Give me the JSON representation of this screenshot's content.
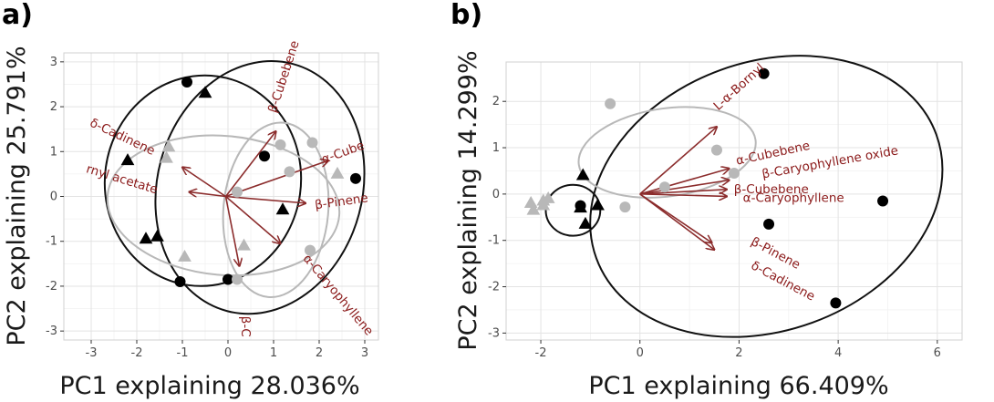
{
  "colors": {
    "black_group": "#000000",
    "grey_group": "#b8b8b8",
    "arrow": "#8b2c2c",
    "label": "#8b1a1a",
    "grid_major": "#e3e3e3",
    "grid_minor": "#f2f2f2",
    "panel_border": "#d0d0d0"
  },
  "chart_data": [
    {
      "panel": "a)",
      "type": "scatter",
      "xlabel": "PC1 explaining 28.036%",
      "ylabel": "PC2 explaining 25.791%",
      "xlim": [
        -3.6,
        3.3
      ],
      "ylim": [
        -3.2,
        3.2
      ],
      "xticks": [
        -3,
        -2,
        -1,
        0,
        1,
        2,
        3
      ],
      "yticks": [
        -3,
        -2,
        -1,
        0,
        1,
        2,
        3
      ],
      "grid": true,
      "series": [
        {
          "group": "black-circle",
          "points": [
            [
              -0.9,
              2.55
            ],
            [
              0.8,
              0.9
            ],
            [
              2.8,
              0.4
            ],
            [
              -1.05,
              -1.9
            ],
            [
              0.0,
              -1.85
            ]
          ]
        },
        {
          "group": "black-triangle",
          "points": [
            [
              -0.5,
              2.3
            ],
            [
              -2.2,
              0.8
            ],
            [
              -1.8,
              -0.95
            ],
            [
              -1.55,
              -0.9
            ],
            [
              1.2,
              -0.3
            ]
          ]
        },
        {
          "group": "grey-circle",
          "points": [
            [
              1.15,
              1.15
            ],
            [
              1.35,
              0.55
            ],
            [
              0.2,
              0.1
            ],
            [
              1.85,
              1.2
            ],
            [
              1.8,
              -1.2
            ],
            [
              0.2,
              -1.85
            ]
          ]
        },
        {
          "group": "grey-triangle",
          "points": [
            [
              -1.3,
              1.1
            ],
            [
              -1.35,
              0.85
            ],
            [
              2.4,
              0.5
            ],
            [
              0.35,
              -1.1
            ],
            [
              -0.95,
              -1.35
            ]
          ]
        }
      ],
      "ellipses": [
        {
          "color": "black",
          "cx": -0.55,
          "cy": 0.35,
          "rx": 2.15,
          "ry": 2.35,
          "rot": 8
        },
        {
          "color": "black",
          "cx": 0.7,
          "cy": 0.2,
          "rx": 2.25,
          "ry": 2.85,
          "rot": 15
        },
        {
          "color": "grey",
          "cx": -0.1,
          "cy": -0.2,
          "rx": 2.55,
          "ry": 1.55,
          "rot": 5
        },
        {
          "color": "grey",
          "cx": 1.05,
          "cy": -0.3,
          "rx": 1.15,
          "ry": 1.95,
          "rot": 5
        }
      ],
      "loadings": [
        {
          "label": "β-Cubebene",
          "x": 1.05,
          "y": 1.45,
          "lx": 1.05,
          "ly": 1.85,
          "angle": -72,
          "anchor": "start"
        },
        {
          "label": "δ-Cadinene",
          "x": -1.0,
          "y": 0.65,
          "lx": -2.35,
          "ly": 1.25,
          "angle": 25,
          "anchor": "middle"
        },
        {
          "label": "rnyl acetate",
          "x": -0.85,
          "y": 0.1,
          "lx": -2.35,
          "ly": 0.3,
          "angle": 17,
          "anchor": "middle"
        },
        {
          "label": "α-Cube",
          "x": 2.2,
          "y": 0.8,
          "lx": 2.55,
          "ly": 0.9,
          "angle": -20,
          "anchor": "middle"
        },
        {
          "label": "β-Pinene",
          "x": 1.7,
          "y": -0.15,
          "lx": 2.5,
          "ly": -0.2,
          "angle": -8,
          "anchor": "middle"
        },
        {
          "label": "α-Caryophyllene",
          "x": 1.15,
          "y": -1.05,
          "lx": 2.35,
          "ly": -2.25,
          "angle": 50,
          "anchor": "middle"
        },
        {
          "label": "β-C",
          "x": 0.25,
          "y": -1.55,
          "lx": 0.3,
          "ly": -2.9,
          "angle": 90,
          "anchor": "middle"
        }
      ],
      "arrow_origin": [
        -0.05,
        0.0
      ]
    },
    {
      "panel": "b)",
      "type": "scatter",
      "xlabel": "PC1 explaining 66.409%",
      "ylabel": "PC2 explaining 14.299%",
      "xlim": [
        -2.7,
        6.5
      ],
      "ylim": [
        -3.15,
        2.85
      ],
      "xticks": [
        -2,
        0,
        2,
        4,
        6
      ],
      "yticks": [
        -3,
        -2,
        -1,
        0,
        1,
        2
      ],
      "grid": true,
      "series": [
        {
          "group": "black-circle",
          "points": [
            [
              2.5,
              2.6
            ],
            [
              4.9,
              -0.15
            ],
            [
              2.6,
              -0.65
            ],
            [
              3.95,
              -2.35
            ],
            [
              -1.2,
              -0.25
            ]
          ]
        },
        {
          "group": "black-triangle",
          "points": [
            [
              -1.15,
              0.4
            ],
            [
              -1.2,
              -0.3
            ],
            [
              -0.85,
              -0.25
            ],
            [
              -1.1,
              -0.65
            ]
          ]
        },
        {
          "group": "grey-circle",
          "points": [
            [
              -0.6,
              1.95
            ],
            [
              1.55,
              0.95
            ],
            [
              1.9,
              0.45
            ],
            [
              0.5,
              0.15
            ],
            [
              -0.3,
              -0.28
            ]
          ]
        },
        {
          "group": "grey-triangle",
          "points": [
            [
              -2.2,
              -0.2
            ],
            [
              -1.95,
              -0.15
            ],
            [
              -1.95,
              -0.25
            ],
            [
              -2.15,
              -0.35
            ],
            [
              -1.85,
              -0.1
            ]
          ]
        }
      ],
      "ellipses": [
        {
          "color": "black",
          "cx": 2.55,
          "cy": -0.05,
          "rx": 3.65,
          "ry": 2.9,
          "rot": -20
        },
        {
          "color": "black",
          "cx": -1.35,
          "cy": -0.35,
          "rx": 0.55,
          "ry": 0.55,
          "rot": 0
        },
        {
          "color": "grey",
          "cx": 0.55,
          "cy": 0.9,
          "rx": 1.8,
          "ry": 0.95,
          "rot": -8
        }
      ],
      "loadings": [
        {
          "label": "L-α-Bornyl",
          "x": 1.55,
          "y": 1.45,
          "lx": 2.05,
          "ly": 2.25,
          "angle": -42,
          "anchor": "middle"
        },
        {
          "label": "α-Cubebene",
          "x": 1.8,
          "y": 0.55,
          "lx": 2.7,
          "ly": 0.8,
          "angle": -12,
          "anchor": "middle"
        },
        {
          "label": "β-Caryophyllene oxide",
          "x": 1.8,
          "y": 0.3,
          "lx": 3.85,
          "ly": 0.6,
          "angle": -10,
          "anchor": "middle"
        },
        {
          "label": "β-Cubebene",
          "x": 1.75,
          "y": 0.1,
          "lx": 2.65,
          "ly": 0.02,
          "angle": 0,
          "anchor": "middle"
        },
        {
          "label": "α-Caryophyllene",
          "x": 1.75,
          "y": -0.05,
          "lx": 3.1,
          "ly": -0.17,
          "angle": 0,
          "anchor": "middle"
        },
        {
          "label": "β-Pinene",
          "x": 1.5,
          "y": -1.2,
          "lx": 2.7,
          "ly": -1.35,
          "angle": 28,
          "anchor": "middle"
        },
        {
          "label": "δ-Cadinene",
          "x": 1.45,
          "y": -1.05,
          "lx": 2.85,
          "ly": -1.95,
          "angle": 28,
          "anchor": "middle"
        }
      ],
      "arrow_origin": [
        0.0,
        0.0
      ]
    }
  ]
}
